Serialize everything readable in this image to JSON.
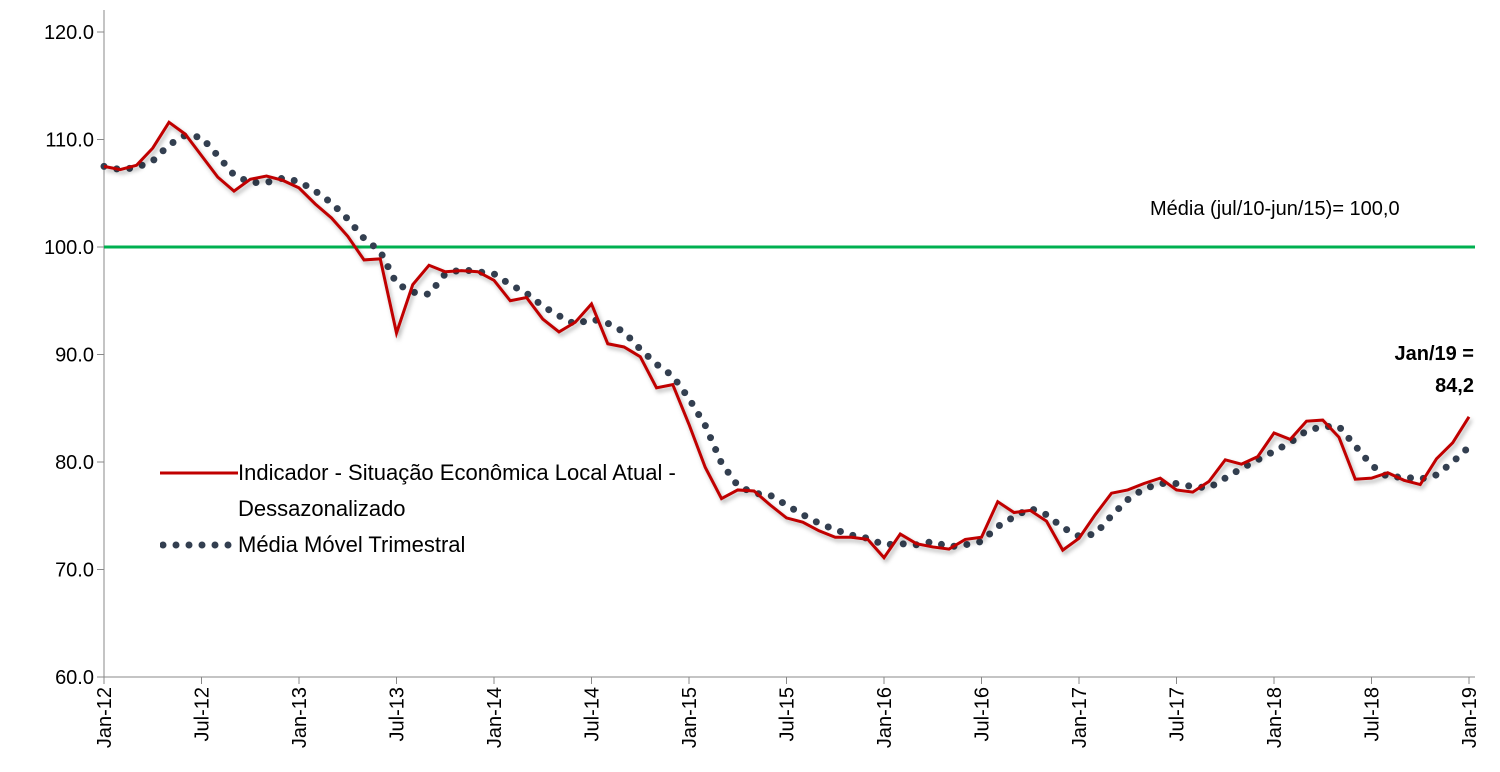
{
  "chart_data": {
    "type": "line",
    "categories": [
      "Jan-12",
      null,
      null,
      null,
      null,
      null,
      "Jul-12",
      null,
      null,
      null,
      null,
      null,
      "Jan-13",
      null,
      null,
      null,
      null,
      null,
      "Jul-13",
      null,
      null,
      null,
      null,
      null,
      "Jan-14",
      null,
      null,
      null,
      null,
      null,
      "Jul-14",
      null,
      null,
      null,
      null,
      null,
      "Jan-15",
      null,
      null,
      null,
      null,
      null,
      "Jul-15",
      null,
      null,
      null,
      null,
      null,
      "Jan-16",
      null,
      null,
      null,
      null,
      null,
      "Jul-16",
      null,
      null,
      null,
      null,
      null,
      "Jan-17",
      null,
      null,
      null,
      null,
      null,
      "Jul-17",
      null,
      null,
      null,
      null,
      null,
      "Jan-18",
      null,
      null,
      null,
      null,
      null,
      "Jul-18",
      null,
      null,
      null,
      null,
      null,
      "Jan-19"
    ],
    "series": [
      {
        "name": "Indicador - Situação Econômica Local Atual - Dessazonalizado",
        "color": "#c00000",
        "style": "solid",
        "values": [
          107.5,
          107.2,
          107.6,
          109.2,
          111.6,
          110.5,
          108.5,
          106.5,
          105.2,
          106.3,
          106.6,
          106.2,
          105.5,
          104.0,
          102.7,
          101.0,
          98.8,
          98.9,
          92.0,
          96.5,
          98.3,
          97.7,
          97.8,
          97.7,
          96.9,
          95.0,
          95.3,
          93.3,
          92.1,
          93.0,
          94.7,
          91.0,
          90.7,
          89.8,
          86.9,
          87.2,
          83.5,
          79.5,
          76.6,
          77.4,
          77.3,
          76.0,
          74.8,
          74.4,
          73.6,
          73.0,
          73.0,
          72.8,
          71.1,
          73.3,
          72.4,
          72.1,
          71.9,
          72.8,
          73.0,
          76.3,
          75.3,
          75.5,
          74.5,
          71.8,
          72.9,
          75.1,
          77.1,
          77.4,
          78.0,
          78.5,
          77.4,
          77.2,
          78.2,
          80.2,
          79.8,
          80.5,
          82.7,
          82.1,
          83.8,
          83.9,
          82.3,
          78.4,
          78.5,
          79.0,
          78.3,
          77.9,
          80.3,
          81.8,
          84.2
        ]
      },
      {
        "name": "Média Móvel Trimestral",
        "color": "#333f50",
        "style": "dotted",
        "values": [
          107.5,
          107.2,
          107.4,
          108.0,
          109.5,
          110.4,
          110.2,
          108.5,
          106.7,
          106.0,
          106.0,
          106.4,
          106.1,
          105.2,
          104.1,
          102.6,
          100.8,
          99.6,
          96.6,
          95.8,
          95.6,
          97.5,
          97.9,
          97.7,
          97.5,
          96.5,
          95.7,
          94.5,
          93.6,
          92.8,
          93.3,
          92.9,
          92.1,
          90.5,
          89.1,
          88.0,
          85.9,
          83.4,
          79.9,
          77.8,
          77.1,
          76.9,
          76.0,
          75.1,
          74.3,
          73.7,
          73.2,
          72.9,
          72.3,
          72.4,
          72.3,
          72.6,
          72.1,
          72.3,
          72.6,
          74.0,
          74.9,
          75.7,
          75.1,
          73.9,
          73.1,
          73.3,
          75.0,
          76.5,
          77.5,
          78.0,
          78.0,
          77.7,
          77.6,
          78.5,
          79.4,
          80.2,
          81.0,
          81.8,
          82.9,
          83.3,
          83.3,
          81.5,
          79.7,
          78.6,
          78.6,
          78.4,
          78.8,
          80.0,
          81.4
        ]
      }
    ],
    "reference_line": {
      "value": 100,
      "label": "Média (jul/10-jun/15)= 100,0",
      "color": "#00b050"
    },
    "annotation": [
      "Jan/19 =",
      "84,2"
    ],
    "ylim": [
      60,
      120
    ],
    "yticks": [
      {
        "value": 60,
        "label": "60.0"
      },
      {
        "value": 70,
        "label": "70.0"
      },
      {
        "value": 80,
        "label": "80.0"
      },
      {
        "value": 90,
        "label": "90.0"
      },
      {
        "value": 100,
        "label": "100.0"
      },
      {
        "value": 110,
        "label": "110.0"
      },
      {
        "value": 120,
        "label": "120.0"
      }
    ],
    "grid": false
  }
}
